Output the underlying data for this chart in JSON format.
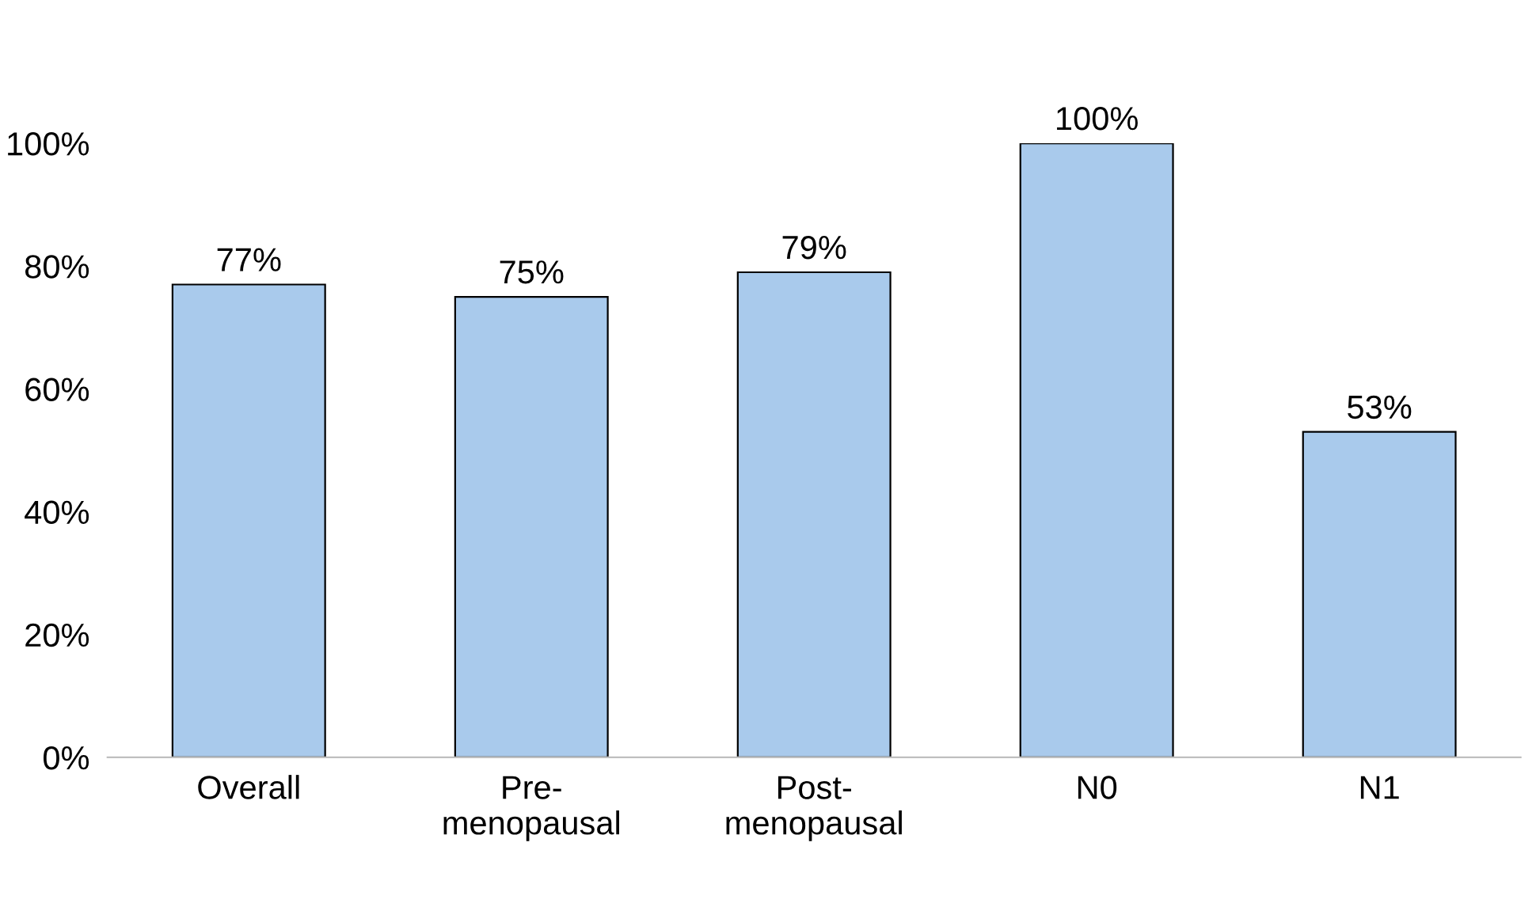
{
  "chart_data": {
    "type": "bar",
    "categories": [
      "Overall",
      "Pre-\nmenopausal",
      "Post-\nmenopausal",
      "N0",
      "N1"
    ],
    "values": [
      77,
      75,
      79,
      100,
      53
    ],
    "value_labels": [
      "77%",
      "75%",
      "79%",
      "100%",
      "53%"
    ],
    "color": "#a9caec",
    "ylim": [
      0,
      100
    ],
    "yticks": [
      {
        "value": 0,
        "label": "0%"
      },
      {
        "value": 20,
        "label": "20%"
      },
      {
        "value": 40,
        "label": "40%"
      },
      {
        "value": 60,
        "label": "60%"
      },
      {
        "value": 80,
        "label": "80%"
      },
      {
        "value": 100,
        "label": "100%"
      }
    ],
    "grid": false,
    "legend": false
  }
}
